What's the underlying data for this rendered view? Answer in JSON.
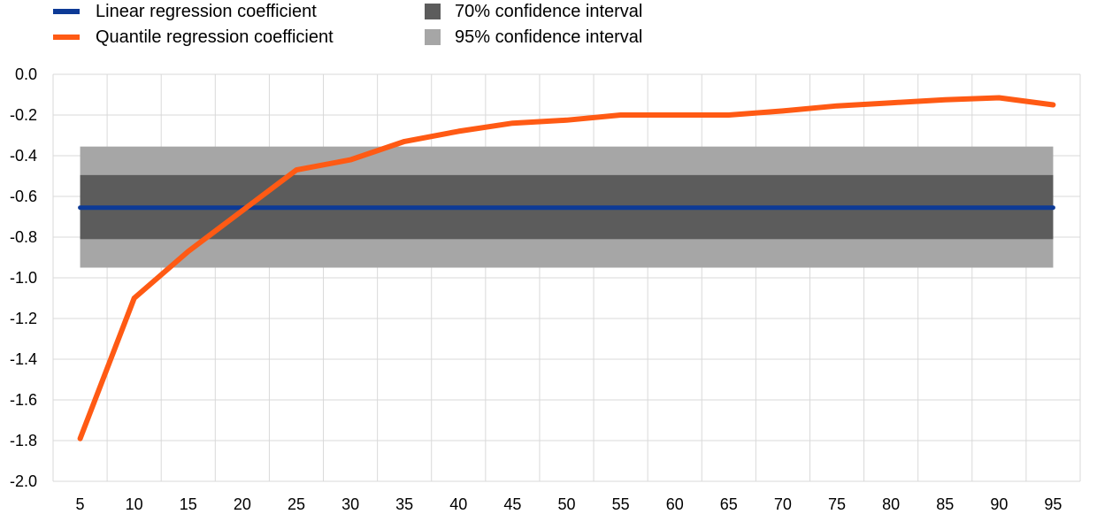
{
  "legend": {
    "linear": "Linear regression coefficient",
    "quantile": "Quantile regression coefficient",
    "ci70": "70% confidence interval",
    "ci95": "95% confidence interval"
  },
  "colors": {
    "linear": "#0d3a96",
    "quantile": "#ff5a14",
    "ci70": "#5c5c5c",
    "ci95": "#a6a6a6",
    "grid": "#d9d9d9"
  },
  "chart_data": {
    "type": "line",
    "x": [
      5,
      10,
      15,
      20,
      25,
      30,
      35,
      40,
      45,
      50,
      55,
      60,
      65,
      70,
      75,
      80,
      85,
      90,
      95
    ],
    "ylim": [
      -2.0,
      0.0
    ],
    "yticks": [
      "0.0",
      "-0.2",
      "-0.4",
      "-0.6",
      "-0.8",
      "-1.0",
      "-1.2",
      "-1.4",
      "-1.6",
      "-1.8",
      "-2.0"
    ],
    "ytick_values": [
      0.0,
      -0.2,
      -0.4,
      -0.6,
      -0.8,
      -1.0,
      -1.2,
      -1.4,
      -1.6,
      -1.8,
      -2.0
    ],
    "grid": true,
    "legend_position": "top-left",
    "series": [
      {
        "name": "Linear regression coefficient",
        "key": "linear",
        "values": [
          -0.655,
          -0.655,
          -0.655,
          -0.655,
          -0.655,
          -0.655,
          -0.655,
          -0.655,
          -0.655,
          -0.655,
          -0.655,
          -0.655,
          -0.655,
          -0.655,
          -0.655,
          -0.655,
          -0.655,
          -0.655,
          -0.655
        ]
      },
      {
        "name": "Quantile regression coefficient",
        "key": "quantile",
        "values": [
          -1.79,
          -1.1,
          -0.87,
          -0.67,
          -0.47,
          -0.42,
          -0.33,
          -0.28,
          -0.24,
          -0.225,
          -0.2,
          -0.2,
          -0.2,
          -0.18,
          -0.155,
          -0.14,
          -0.125,
          -0.115,
          -0.15
        ]
      }
    ],
    "bands": [
      {
        "name": "95% confidence interval",
        "key": "ci95",
        "lower": -0.95,
        "upper": -0.355
      },
      {
        "name": "70% confidence interval",
        "key": "ci70",
        "lower": -0.81,
        "upper": -0.495
      }
    ]
  }
}
